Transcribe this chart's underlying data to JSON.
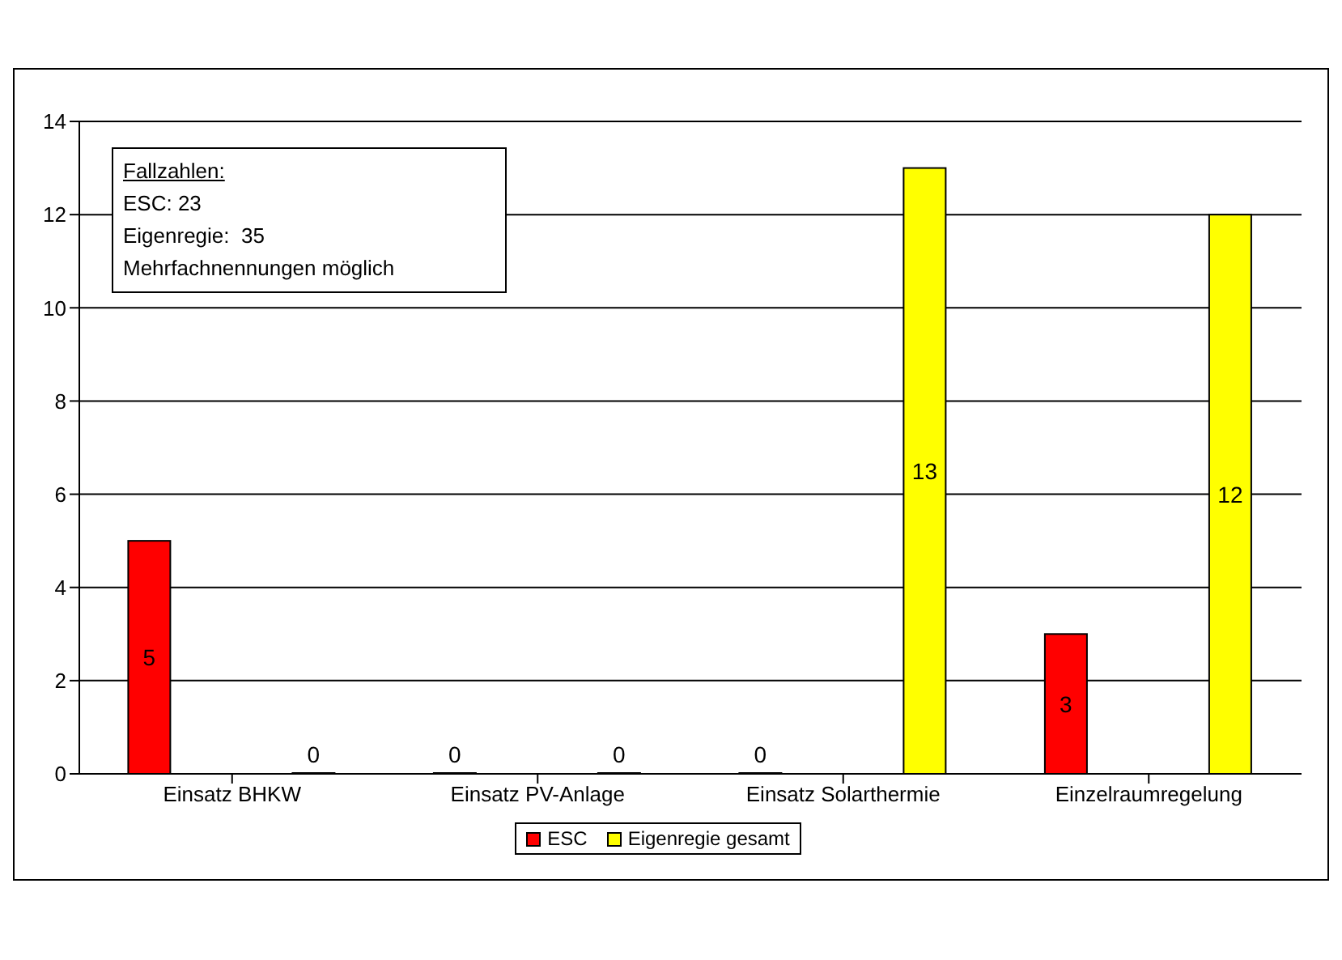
{
  "chart_data": {
    "type": "bar",
    "categories": [
      "Einsatz BHKW",
      "Einsatz PV-Anlage",
      "Einsatz Solarthermie",
      "Einzelraumregelung"
    ],
    "series": [
      {
        "name": "ESC",
        "color": "#ff0000",
        "values": [
          5,
          0,
          0,
          3
        ]
      },
      {
        "name": "Eigenregie gesamt",
        "color": "#ffff00",
        "values": [
          0,
          0,
          13,
          12
        ]
      }
    ],
    "ylim": [
      0,
      14
    ],
    "yticks": [
      0,
      2,
      4,
      6,
      8,
      10,
      12,
      14
    ],
    "grid": "y",
    "legend": "bottom",
    "data_labels": true,
    "annotations": [
      "Fallzahlen:",
      "ESC: 23",
      "Eigenregie:  35",
      "Mehrfachnennungen möglich"
    ]
  }
}
